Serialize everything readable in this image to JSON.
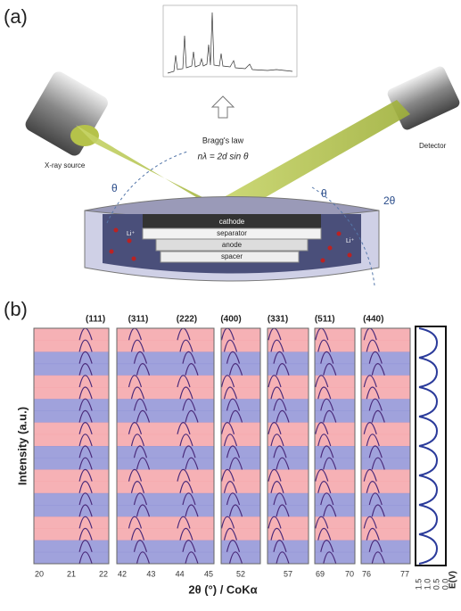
{
  "panel_a": {
    "label": "(a)",
    "law_title": "Bragg's law",
    "law_equation": "nλ = 2d sin θ",
    "source": "X-ray source",
    "detector": "Detector",
    "angle_left": "θ",
    "angle_right": "θ",
    "angle_double": "2θ",
    "layers": [
      "cathode",
      "separator",
      "anode",
      "spacer"
    ],
    "ion_left": "Li⁺",
    "ion_right": "Li⁺"
  },
  "panel_b": {
    "label": "(b)",
    "y_label": "Intensity (a.u.)",
    "x_label": "2θ (°) / CoKα",
    "e_label": "E(V)",
    "subplots": [
      {
        "peaks": [
          "(111)"
        ],
        "ticks": [
          "20",
          "21",
          "22"
        ]
      },
      {
        "peaks": [
          "(311)",
          "(222)"
        ],
        "ticks": [
          "42",
          "43",
          "44",
          "45"
        ]
      },
      {
        "peaks": [
          "(400)"
        ],
        "ticks": [
          "52"
        ]
      },
      {
        "peaks": [
          "(331)"
        ],
        "ticks": [
          "57"
        ]
      },
      {
        "peaks": [
          "(511)"
        ],
        "ticks": [
          "69",
          "70"
        ]
      },
      {
        "peaks": [
          "(440)"
        ],
        "ticks": [
          "76",
          "77"
        ]
      }
    ],
    "e_ticks": [
      "1.5",
      "1.0",
      "0.5",
      "0.0"
    ]
  }
}
